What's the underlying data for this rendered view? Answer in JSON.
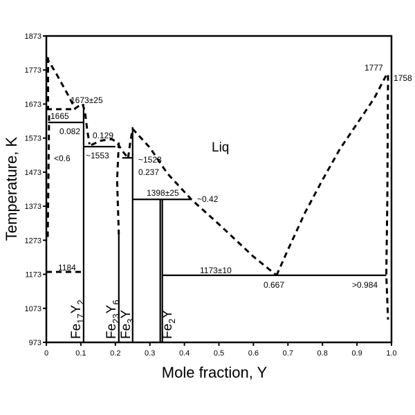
{
  "chart_data": {
    "type": "line",
    "title": "",
    "xlabel": "Mole fraction, Y",
    "ylabel": "Temperature, K",
    "xlim": [
      0,
      1.0
    ],
    "ylim": [
      973,
      1873
    ],
    "xticks": [
      "0",
      "0.1",
      "0.2",
      "0.3",
      "0.4",
      "0.5",
      "0.6",
      "0.7",
      "0.8",
      "0.9",
      "1.0"
    ],
    "yticks": [
      "1873",
      "1773",
      "1673",
      "1573",
      "1473",
      "1373",
      "1273",
      "1173",
      "1073",
      "973"
    ],
    "grid": false,
    "series": [
      {
        "style": "dashed",
        "points": [
          [
            0,
            1811
          ],
          [
            0.03,
            1760
          ],
          [
            0.06,
            1705
          ],
          [
            0.083,
            1660
          ],
          [
            0.095,
            1668
          ],
          [
            0.105,
            1673
          ],
          [
            0.112,
            1650
          ],
          [
            0.118,
            1600
          ],
          [
            0.125,
            1555
          ]
        ]
      },
      {
        "style": "dashed",
        "points": [
          [
            0.13,
            1553
          ],
          [
            0.16,
            1566
          ],
          [
            0.19,
            1570
          ],
          [
            0.205,
            1560
          ],
          [
            0.22,
            1535
          ],
          [
            0.237,
            1515
          ]
        ]
      },
      {
        "style": "dashed",
        "points": [
          [
            0.237,
            1515
          ],
          [
            0.243,
            1560
          ],
          [
            0.25,
            1600
          ],
          [
            0.3,
            1545
          ],
          [
            0.35,
            1470
          ],
          [
            0.42,
            1393
          ],
          [
            0.5,
            1320
          ],
          [
            0.6,
            1225
          ],
          [
            0.667,
            1170
          ]
        ]
      },
      {
        "style": "dashed",
        "points": [
          [
            0.667,
            1170
          ],
          [
            0.7,
            1245
          ],
          [
            0.75,
            1355
          ],
          [
            0.8,
            1450
          ],
          [
            0.85,
            1540
          ],
          [
            0.9,
            1615
          ],
          [
            0.95,
            1690
          ],
          [
            0.985,
            1758
          ]
        ]
      },
      {
        "style": "dashed",
        "points": [
          [
            0.005,
            1810
          ],
          [
            0.005,
            1660
          ]
        ]
      },
      {
        "style": "dashed",
        "points": [
          [
            0,
            1658
          ],
          [
            0.085,
            1658
          ]
        ]
      },
      {
        "style": "dashed",
        "points": [
          [
            0.008,
            1640
          ],
          [
            0.006,
            1450
          ],
          [
            0.004,
            1280
          ]
        ]
      },
      {
        "style": "dashed",
        "points": [
          [
            0.21,
            1560
          ],
          [
            0.205,
            1450
          ],
          [
            0.21,
            1290
          ]
        ]
      },
      {
        "style": "dashed",
        "points": [
          [
            0.99,
            1758
          ],
          [
            0.988,
            1400
          ],
          [
            0.985,
            1170
          ],
          [
            0.99,
            1040
          ]
        ]
      },
      {
        "style": "dashed",
        "points": [
          [
            0,
            1180
          ],
          [
            0.108,
            1180
          ]
        ]
      },
      {
        "style": "solid",
        "points": [
          [
            0.005,
            1619
          ],
          [
            0.108,
            1619
          ]
        ]
      },
      {
        "style": "solid",
        "points": [
          [
            0.108,
            1673
          ],
          [
            0.108,
            973
          ]
        ]
      },
      {
        "style": "solid",
        "points": [
          [
            0.108,
            1548
          ],
          [
            0.2,
            1548
          ]
        ]
      },
      {
        "style": "solid",
        "points": [
          [
            0.21,
            1290
          ],
          [
            0.21,
            973
          ]
        ]
      },
      {
        "style": "solid",
        "points": [
          [
            0.22,
            1515
          ],
          [
            0.25,
            1515
          ]
        ]
      },
      {
        "style": "solid",
        "points": [
          [
            0.25,
            1605
          ],
          [
            0.25,
            973
          ]
        ]
      },
      {
        "style": "solid",
        "points": [
          [
            0.25,
            1393
          ],
          [
            0.42,
            1393
          ]
        ]
      },
      {
        "style": "solid",
        "points": [
          [
            0.33,
            1393
          ],
          [
            0.33,
            973
          ]
        ]
      },
      {
        "style": "solid",
        "points": [
          [
            0.336,
            1393
          ],
          [
            0.336,
            973
          ]
        ]
      },
      {
        "style": "solid",
        "points": [
          [
            0.336,
            1170
          ],
          [
            0.985,
            1170
          ]
        ]
      }
    ],
    "annotations": [
      "1673±25",
      "1665",
      "0.082",
      "0.129",
      "<0.6",
      "~1553",
      "~1523",
      "0.237",
      "1398±25",
      "~0.42",
      "Liq",
      "1184",
      "1173±10",
      "0.667",
      ">0.984",
      "1777",
      "1758"
    ],
    "phases": [
      {
        "base": "Fe",
        "sub1": "17",
        "mid": "Y",
        "sub2": "2"
      },
      {
        "base": "Fe",
        "sub1": "23",
        "mid": "Y",
        "sub2": "6"
      },
      {
        "base": "Fe",
        "sub1": "3",
        "mid": "Y",
        "sub2": ""
      },
      {
        "base": "Fe",
        "sub1": "2",
        "mid": "Y",
        "sub2": ""
      }
    ]
  }
}
